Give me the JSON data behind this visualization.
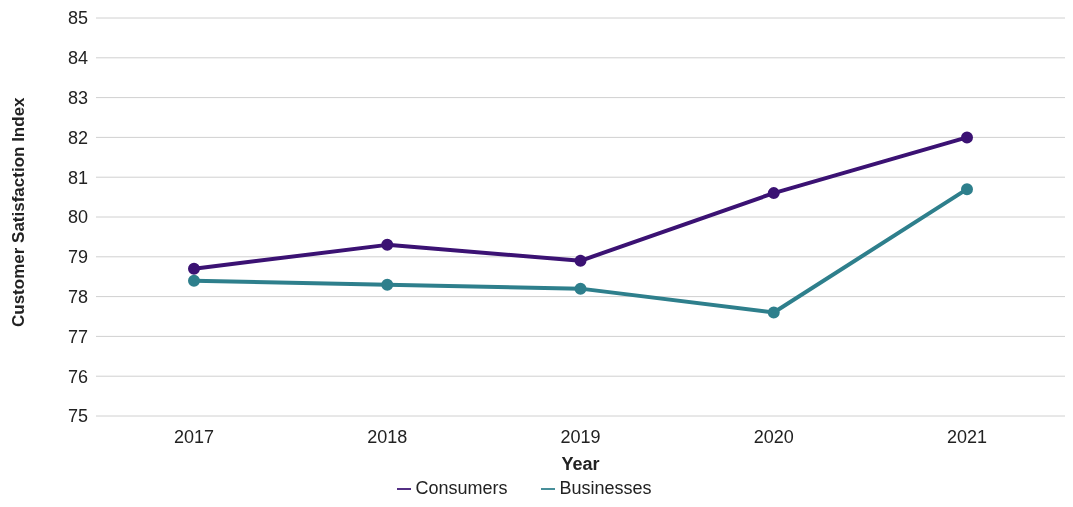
{
  "chart_data": {
    "type": "line",
    "xlabel": "Year",
    "ylabel": "Customer Satisfaction Index",
    "categories": [
      "2017",
      "2018",
      "2019",
      "2020",
      "2021"
    ],
    "series": [
      {
        "name": "Consumers",
        "color": "#3b1273",
        "values": [
          78.7,
          79.3,
          78.9,
          80.6,
          82.0
        ]
      },
      {
        "name": "Businesses",
        "color": "#2e7f8c",
        "values": [
          78.4,
          78.3,
          78.2,
          77.6,
          80.7
        ]
      }
    ],
    "ylim": [
      75,
      85
    ],
    "yticks": [
      75,
      76,
      77,
      78,
      79,
      80,
      81,
      82,
      83,
      84,
      85
    ],
    "grid": "y",
    "legend": "bottom",
    "marker": "circle",
    "line_style": "solid"
  }
}
